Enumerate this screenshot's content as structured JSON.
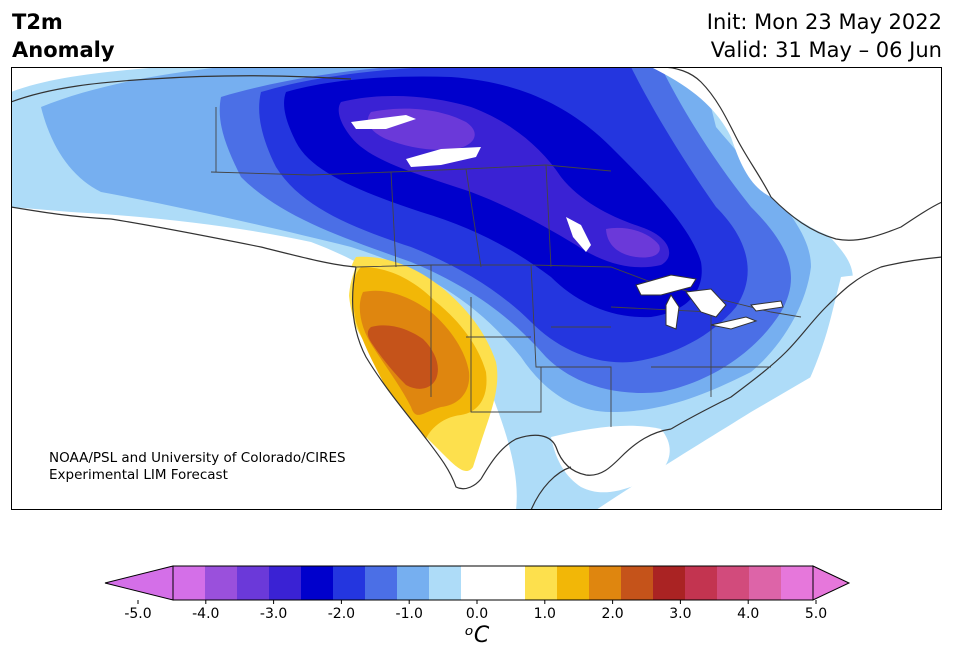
{
  "title": {
    "variable": "T2m",
    "subtitle": "Anomaly",
    "init": "Init: Mon 23 May 2022",
    "valid": "Valid: 31 May – 06 Jun"
  },
  "credit": {
    "line1": "NOAA/PSL and University of Colorado/CIRES",
    "line2": "Experimental LIM Forecast"
  },
  "colorbar": {
    "colors": [
      "#d46fe8",
      "#9a50dc",
      "#6b39d9",
      "#3a22d4",
      "#0000cc",
      "#2436df",
      "#4b6fe6",
      "#76aff0",
      "#aedcf8",
      "#ffffff",
      "#ffffff",
      "#fde04d",
      "#f2b707",
      "#df860f",
      "#c5531a",
      "#aa2323",
      "#c33450",
      "#d24b7c",
      "#dd64a8",
      "#e677db"
    ],
    "tick_labels": [
      "-5.0",
      "-4.0",
      "-3.0",
      "-2.0",
      "-1.0",
      "0.0",
      "1.0",
      "2.0",
      "3.0",
      "4.0",
      "5.0"
    ],
    "unit": "ᵒC",
    "min": -5.0,
    "max": 5.0,
    "step": 0.5
  }
}
